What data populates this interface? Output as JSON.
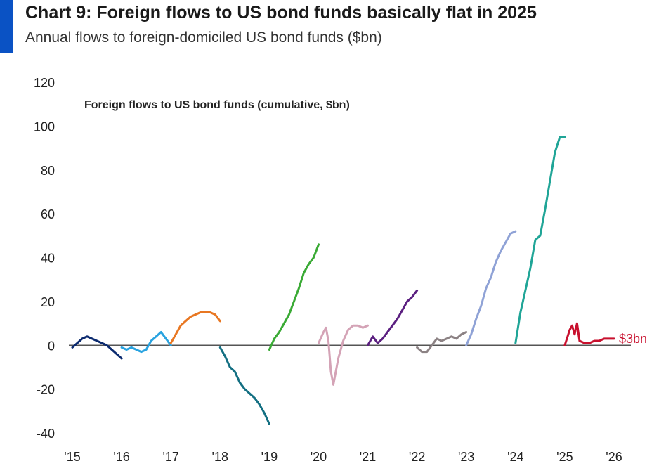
{
  "header": {
    "title": "Chart 9: Foreign flows to US bond funds basically flat in 2025",
    "subtitle": "Annual flows to foreign-domiciled US bond funds ($bn)"
  },
  "chart_data": {
    "type": "line",
    "title": "Chart 9: Foreign flows to US bond funds basically flat in 2025",
    "subtitle": "Annual flows to foreign-domiciled US bond funds ($bn)",
    "inner_title": "Foreign flows to US bond funds (cumulative, $bn)",
    "xlim": [
      2015,
      2026.3
    ],
    "ylim": [
      -40,
      120
    ],
    "yticks": [
      -40,
      -20,
      0,
      20,
      40,
      60,
      80,
      100,
      120
    ],
    "ytick_labels": [
      "-40",
      "-20",
      "0",
      "20",
      "40",
      "60",
      "80",
      "100",
      "120"
    ],
    "xticks": [
      2015,
      2016,
      2017,
      2018,
      2019,
      2020,
      2021,
      2022,
      2023,
      2024,
      2025,
      2026
    ],
    "xtick_labels": [
      "'15",
      "'16",
      "'17",
      "'18",
      "'19",
      "'20",
      "'21",
      "'22",
      "'23",
      "'24",
      "'25",
      "'26"
    ],
    "grid": false,
    "annotation": {
      "text": "$3bn",
      "x": 2026.1,
      "y": 3,
      "color": "#c8102e"
    },
    "series": [
      {
        "color": "#0b2a6f",
        "x": [
          2015.0,
          2015.1,
          2015.2,
          2015.3,
          2015.4,
          2015.5,
          2015.6,
          2015.7,
          2015.8,
          2015.9,
          2016.0
        ],
        "y": [
          -1,
          1,
          3,
          4,
          3,
          2,
          1,
          0,
          -2,
          -4,
          -6
        ]
      },
      {
        "color": "#29a3e0",
        "x": [
          2016.0,
          2016.1,
          2016.2,
          2016.3,
          2016.4,
          2016.5,
          2016.6,
          2016.7,
          2016.8,
          2016.9,
          2017.0
        ],
        "y": [
          -1,
          -2,
          -1,
          -2,
          -3,
          -2,
          2,
          4,
          6,
          3,
          0
        ]
      },
      {
        "color": "#e87722",
        "x": [
          2017.0,
          2017.1,
          2017.2,
          2017.3,
          2017.4,
          2017.5,
          2017.6,
          2017.7,
          2017.8,
          2017.9,
          2018.0
        ],
        "y": [
          1,
          5,
          9,
          11,
          13,
          14,
          15,
          15,
          15,
          14,
          11
        ]
      },
      {
        "color": "#136f82",
        "x": [
          2018.0,
          2018.1,
          2018.2,
          2018.3,
          2018.4,
          2018.5,
          2018.6,
          2018.7,
          2018.8,
          2018.9,
          2019.0
        ],
        "y": [
          -1,
          -5,
          -10,
          -12,
          -17,
          -20,
          -22,
          -24,
          -27,
          -31,
          -36
        ]
      },
      {
        "color": "#3aaa35",
        "x": [
          2019.0,
          2019.1,
          2019.2,
          2019.3,
          2019.4,
          2019.5,
          2019.6,
          2019.7,
          2019.8,
          2019.9,
          2020.0
        ],
        "y": [
          -2,
          3,
          6,
          10,
          14,
          20,
          26,
          33,
          37,
          40,
          46
        ]
      },
      {
        "color": "#d4a3b6",
        "x": [
          2020.0,
          2020.1,
          2020.15,
          2020.2,
          2020.25,
          2020.3,
          2020.35,
          2020.4,
          2020.5,
          2020.6,
          2020.7,
          2020.8,
          2020.9,
          2021.0
        ],
        "y": [
          1,
          6,
          8,
          2,
          -12,
          -18,
          -12,
          -6,
          2,
          7,
          9,
          9,
          8,
          9
        ]
      },
      {
        "color": "#5b1f80",
        "x": [
          2021.0,
          2021.1,
          2021.2,
          2021.3,
          2021.4,
          2021.5,
          2021.6,
          2021.7,
          2021.8,
          2021.9,
          2022.0
        ],
        "y": [
          0,
          4,
          1,
          3,
          6,
          9,
          12,
          16,
          20,
          22,
          25
        ]
      },
      {
        "color": "#8c8284",
        "x": [
          2022.0,
          2022.1,
          2022.2,
          2022.3,
          2022.4,
          2022.5,
          2022.6,
          2022.7,
          2022.8,
          2022.9,
          2023.0
        ],
        "y": [
          -1,
          -3,
          -3,
          0,
          3,
          2,
          3,
          4,
          3,
          5,
          6
        ]
      },
      {
        "color": "#8fa2d6",
        "x": [
          2023.0,
          2023.1,
          2023.2,
          2023.3,
          2023.4,
          2023.5,
          2023.6,
          2023.7,
          2023.8,
          2023.9,
          2024.0
        ],
        "y": [
          0,
          5,
          12,
          18,
          26,
          31,
          38,
          43,
          47,
          51,
          52
        ]
      },
      {
        "color": "#20a597",
        "x": [
          2024.0,
          2024.1,
          2024.2,
          2024.3,
          2024.4,
          2024.5,
          2024.6,
          2024.7,
          2024.8,
          2024.9,
          2025.0
        ],
        "y": [
          1,
          15,
          25,
          35,
          48,
          50,
          62,
          75,
          88,
          95,
          95
        ]
      },
      {
        "color": "#c8102e",
        "x": [
          2025.0,
          2025.1,
          2025.15,
          2025.2,
          2025.25,
          2025.3,
          2025.4,
          2025.5,
          2025.6,
          2025.7,
          2025.8,
          2025.9,
          2026.0
        ],
        "y": [
          0,
          7,
          9,
          5,
          10,
          2,
          1,
          1,
          2,
          2,
          3,
          3,
          3
        ]
      }
    ]
  }
}
